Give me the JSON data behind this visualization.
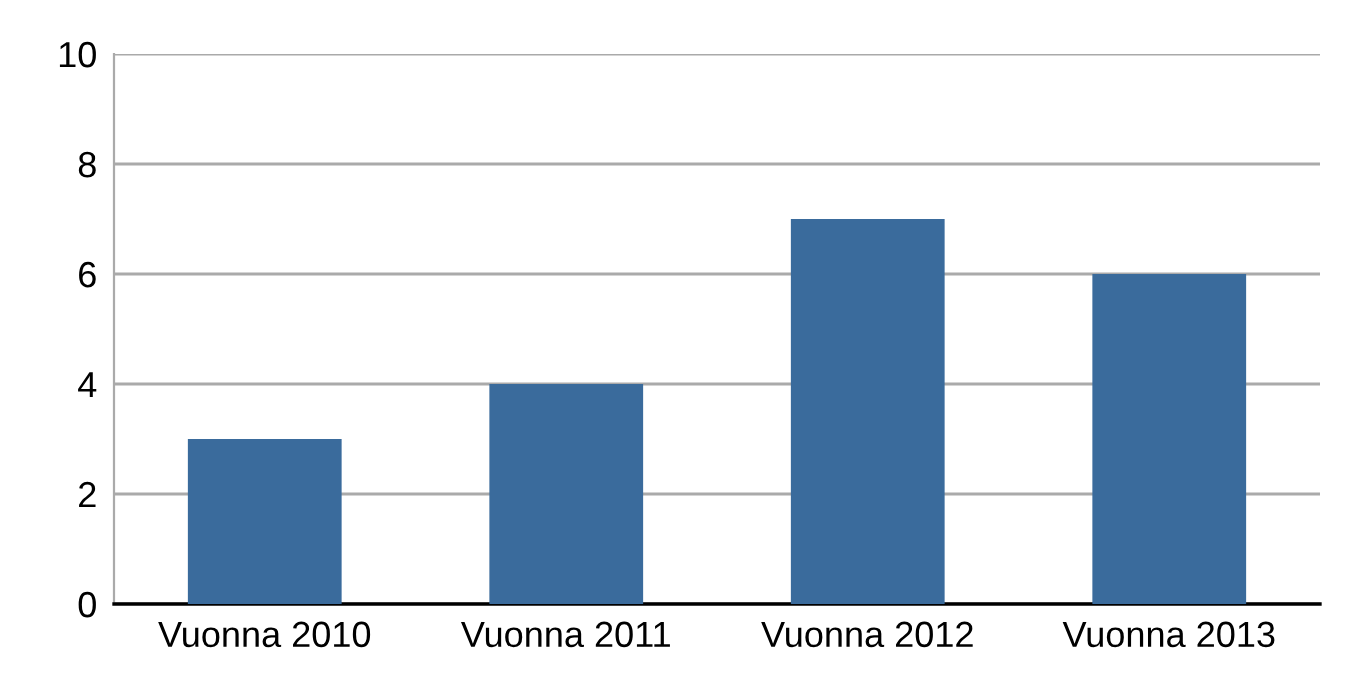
{
  "chart_data": {
    "type": "bar",
    "categories": [
      "Vuonna 2010",
      "Vuonna 2011",
      "Vuonna 2012",
      "Vuonna 2013"
    ],
    "values": [
      3,
      4,
      7,
      6
    ],
    "color": "#3a6b9c",
    "ylim": [
      0,
      10
    ],
    "yticks": [
      0,
      2,
      4,
      6,
      8,
      10
    ],
    "grid": "y",
    "legend": false
  }
}
